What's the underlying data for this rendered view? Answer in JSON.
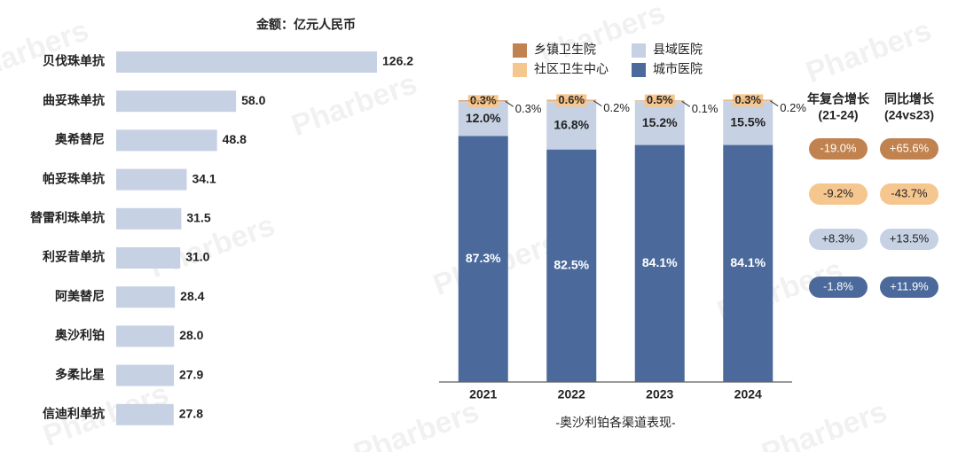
{
  "watermark": "Pharbers",
  "chart_data": [
    {
      "type": "bar",
      "orientation": "horizontal",
      "title": "金额：亿元人民币",
      "color": "#c6d1e3",
      "categories": [
        "贝伐珠单抗",
        "曲妥珠单抗",
        "奥希替尼",
        "帕妥珠单抗",
        "替雷利珠单抗",
        "利妥昔单抗",
        "阿美替尼",
        "奥沙利铂",
        "多柔比星",
        "信迪利单抗"
      ],
      "values": [
        126.2,
        58.0,
        48.8,
        34.1,
        31.5,
        31.0,
        28.4,
        28.0,
        27.9,
        27.8
      ],
      "value_labels": [
        "126.2",
        "58.0",
        "48.8",
        "34.1",
        "31.5",
        "31.0",
        "28.4",
        "28.0",
        "27.9",
        "27.8"
      ]
    },
    {
      "type": "stacked_bar",
      "title": "-奥沙利铂各渠道表现-",
      "categories": [
        "2021",
        "2022",
        "2023",
        "2024"
      ],
      "ylim": [
        0,
        100
      ],
      "growth_columns": [
        {
          "title": "年复合增长",
          "period": "(21-24)"
        },
        {
          "title": "同比增长",
          "period": "(24vs23)"
        }
      ],
      "series": [
        {
          "name": "乡镇卫生院",
          "color": "#c0824f",
          "values": [
            0.3,
            0.2,
            0.1,
            0.2
          ],
          "value_labels": [
            "0.3%",
            "0.2%",
            "0.1%",
            "0.2%"
          ],
          "growth": [
            "-19.0%",
            "+65.6%"
          ]
        },
        {
          "name": "社区卫生中心",
          "color": "#f6c68f",
          "values": [
            0.3,
            0.6,
            0.5,
            0.3
          ],
          "value_labels": [
            "0.3%",
            "0.6%",
            "0.5%",
            "0.3%"
          ],
          "growth": [
            "-9.2%",
            "-43.7%"
          ]
        },
        {
          "name": "县域医院",
          "color": "#c6d1e3",
          "values": [
            12.0,
            16.8,
            15.2,
            15.5
          ],
          "value_labels": [
            "12.0%",
            "16.8%",
            "15.2%",
            "15.5%"
          ],
          "growth": [
            "+8.3%",
            "+13.5%"
          ]
        },
        {
          "name": "城市医院",
          "color": "#4b6a9b",
          "values": [
            87.3,
            82.5,
            84.1,
            84.1
          ],
          "value_labels": [
            "87.3%",
            "82.5%",
            "84.1%",
            "84.1%"
          ],
          "growth": [
            "-1.8%",
            "+11.9%"
          ]
        }
      ]
    }
  ]
}
